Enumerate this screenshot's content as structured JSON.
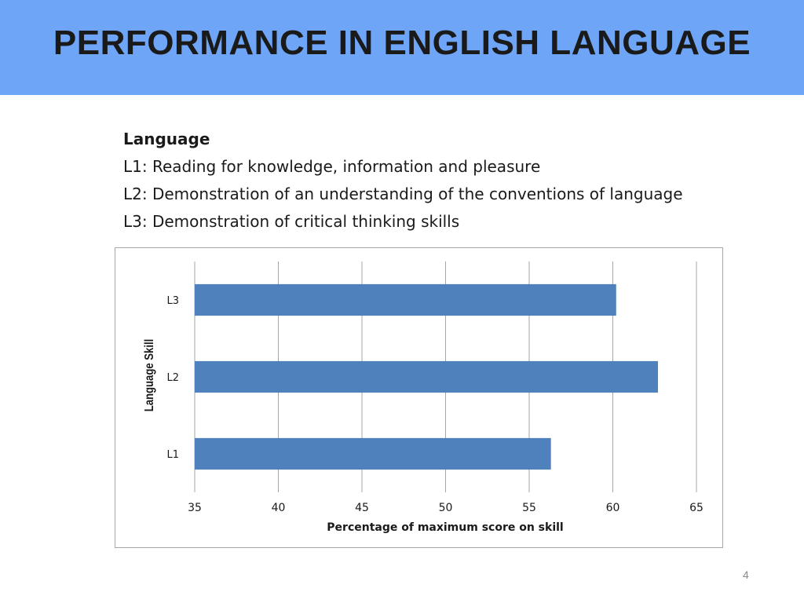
{
  "slide": {
    "title": "PERFORMANCE IN ENGLISH LANGUAGE",
    "page_number": "4"
  },
  "legend": {
    "heading": "Language",
    "lines": [
      "L1: Reading for knowledge, information and pleasure",
      "L2: Demonstration of an understanding of the conventions of language",
      "L3: Demonstration of critical thinking skills"
    ]
  },
  "colors": {
    "title_bar": "#6ea5f7",
    "bar": "#4f81bd",
    "grid": "#a6a6a6"
  },
  "chart_data": {
    "type": "bar",
    "orientation": "horizontal",
    "categories": [
      "L1",
      "L2",
      "L3"
    ],
    "values": [
      56.3,
      62.7,
      60.2
    ],
    "xlabel": "Percentage of maximum score on skill",
    "ylabel": "Language Skill",
    "xlim": [
      35,
      65
    ],
    "xticks": [
      35,
      40,
      45,
      50,
      55,
      60,
      65
    ],
    "grid": "vertical gridlines on",
    "legend": "none"
  }
}
